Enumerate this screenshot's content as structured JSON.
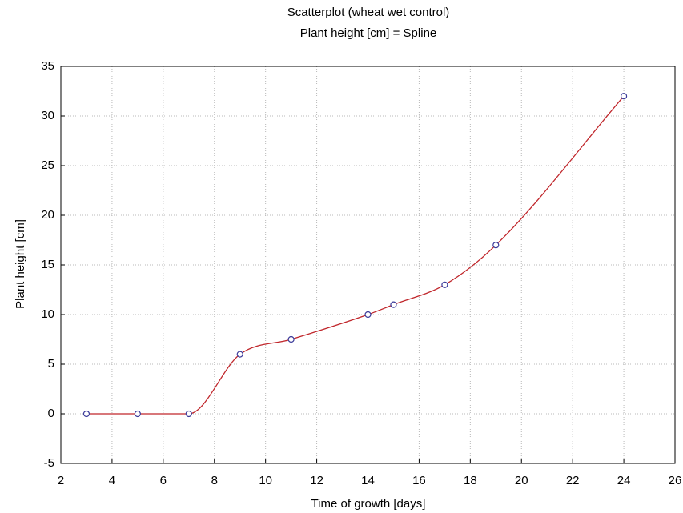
{
  "chart_data": {
    "type": "scatter",
    "title": "Scatterplot (wheat wet control)",
    "subtitle": "Plant height [cm] = Spline",
    "x_label": "Time of growth [days]",
    "y_label": "Plant height [cm]",
    "x": [
      3,
      5,
      7,
      9,
      11,
      14,
      15,
      17,
      19,
      24
    ],
    "y": [
      0,
      0,
      0,
      6,
      7.5,
      10,
      11,
      13,
      17,
      32
    ],
    "fit": "spline",
    "line_color": "#c0262b",
    "marker_color": "#3b3b9a",
    "xlim": [
      2,
      26
    ],
    "xticks": [
      2,
      4,
      6,
      8,
      10,
      12,
      14,
      16,
      18,
      20,
      22,
      24,
      26
    ],
    "ylim": [
      -5,
      35
    ],
    "yticks": [
      -5,
      0,
      5,
      10,
      15,
      20,
      25,
      30,
      35
    ],
    "grid": true
  }
}
